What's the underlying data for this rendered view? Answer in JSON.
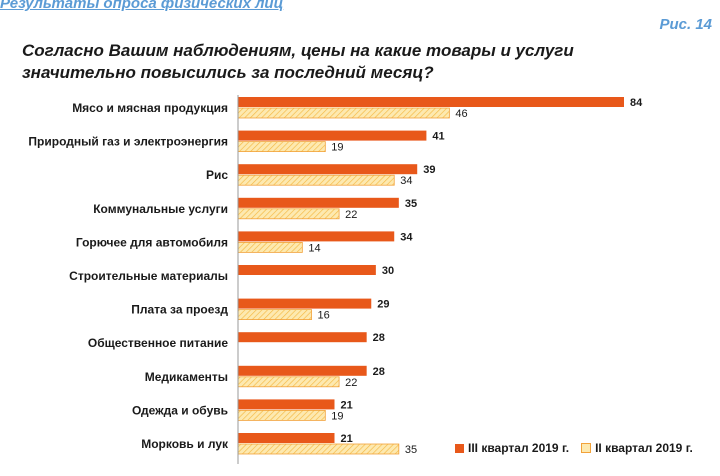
{
  "header": {
    "title": "Результаты опроса физических лиц",
    "figure_number": "Рис. 14",
    "question": "Согласно Вашим наблюдениям, цены на какие товары и услуги значительно повысились за последний месяц?"
  },
  "colors": {
    "series1": "#e8581a",
    "series2_fill": "#fde9b0",
    "series2_stroke": "#f2a23a",
    "accent_text": "#5b9bd5"
  },
  "chart_data": {
    "type": "bar",
    "orientation": "horizontal",
    "categories": [
      "Мясо и мясная продукция",
      "Природный газ и электроэнергия",
      "Рис",
      "Коммунальные услуги",
      "Горючее для автомобиля",
      "Строительные материалы",
      "Плата за проезд",
      "Общественное питание",
      "Медикаменты",
      "Одежда и обувь",
      "Морковь и лук"
    ],
    "series": [
      {
        "name": "III квартал 2019 г.",
        "values": [
          84,
          41,
          39,
          35,
          34,
          30,
          29,
          28,
          28,
          21,
          21
        ]
      },
      {
        "name": "II квартал 2019 г.",
        "values": [
          46,
          19,
          34,
          22,
          14,
          null,
          16,
          null,
          22,
          19,
          35
        ]
      }
    ],
    "data_labels": true,
    "legend_position": "bottom-right",
    "grid": false
  }
}
